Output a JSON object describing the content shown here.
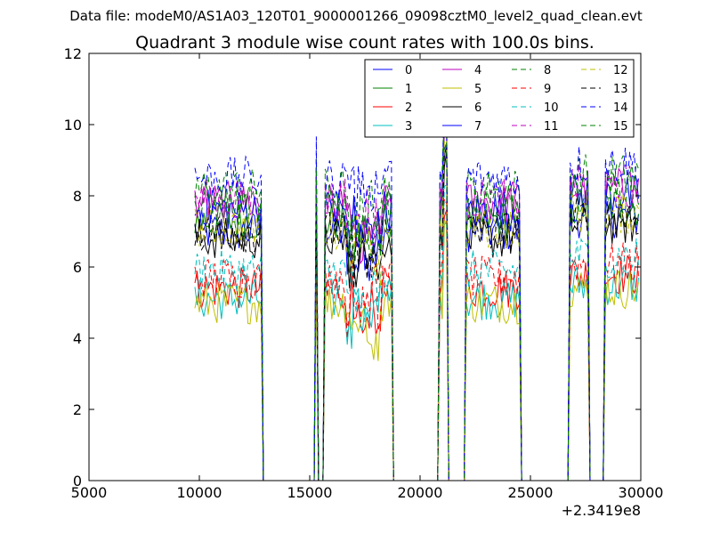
{
  "chart_data": {
    "type": "line",
    "suptitle": "Data file: modeM0/AS1A03_120T01_9000001266_09098cztM0_level2_quad_clean.evt",
    "title": "Quadrant 3 module wise count rates with 100.0s bins.",
    "xlabel": "",
    "ylabel": "",
    "x_offset_label": "+2.3419e8",
    "xlim": [
      5000,
      30000
    ],
    "ylim": [
      0,
      12
    ],
    "x_ticks": [
      "5000",
      "10000",
      "15000",
      "20000",
      "25000",
      "30000"
    ],
    "y_ticks": [
      "0",
      "2",
      "4",
      "6",
      "8",
      "10",
      "12"
    ],
    "grid": false,
    "legend_position": "top-right",
    "legend_columns": 4,
    "segments": [
      {
        "x_start": 9800,
        "x_end": 12800
      },
      {
        "x_start": 15300,
        "x_end": 15300
      },
      {
        "x_start": 15700,
        "x_end": 18700
      },
      {
        "x_start": 20900,
        "x_end": 21200
      },
      {
        "x_start": 22100,
        "x_end": 24500
      },
      {
        "x_start": 26800,
        "x_end": 27600
      },
      {
        "x_start": 28400,
        "x_end": 29900
      }
    ],
    "series": [
      {
        "name": "0",
        "color": "#0000ff",
        "dash": "solid",
        "level": 7.0
      },
      {
        "name": "1",
        "color": "#008000",
        "dash": "solid",
        "level": 7.3
      },
      {
        "name": "2",
        "color": "#ff0000",
        "dash": "solid",
        "level": 5.4
      },
      {
        "name": "3",
        "color": "#00bfbf",
        "dash": "solid",
        "level": 5.1
      },
      {
        "name": "4",
        "color": "#bf00bf",
        "dash": "solid",
        "level": 7.8
      },
      {
        "name": "5",
        "color": "#bfbf00",
        "dash": "solid",
        "level": 5.0
      },
      {
        "name": "6",
        "color": "#000000",
        "dash": "solid",
        "level": 6.8
      },
      {
        "name": "7",
        "color": "#0000ff",
        "dash": "solid",
        "level": 7.6
      },
      {
        "name": "8",
        "color": "#008000",
        "dash": "dashed",
        "level": 8.2
      },
      {
        "name": "9",
        "color": "#ff0000",
        "dash": "dashed",
        "level": 5.7
      },
      {
        "name": "10",
        "color": "#00bfbf",
        "dash": "dashed",
        "level": 5.9
      },
      {
        "name": "11",
        "color": "#bf00bf",
        "dash": "dashed",
        "level": 7.9
      },
      {
        "name": "12",
        "color": "#bfbf00",
        "dash": "dashed",
        "level": 7.1
      },
      {
        "name": "13",
        "color": "#000000",
        "dash": "dashed",
        "level": 7.0
      },
      {
        "name": "14",
        "color": "#0000ff",
        "dash": "dashed",
        "level": 8.5
      },
      {
        "name": "15",
        "color": "#008000",
        "dash": "dashed",
        "level": 7.7
      }
    ]
  }
}
